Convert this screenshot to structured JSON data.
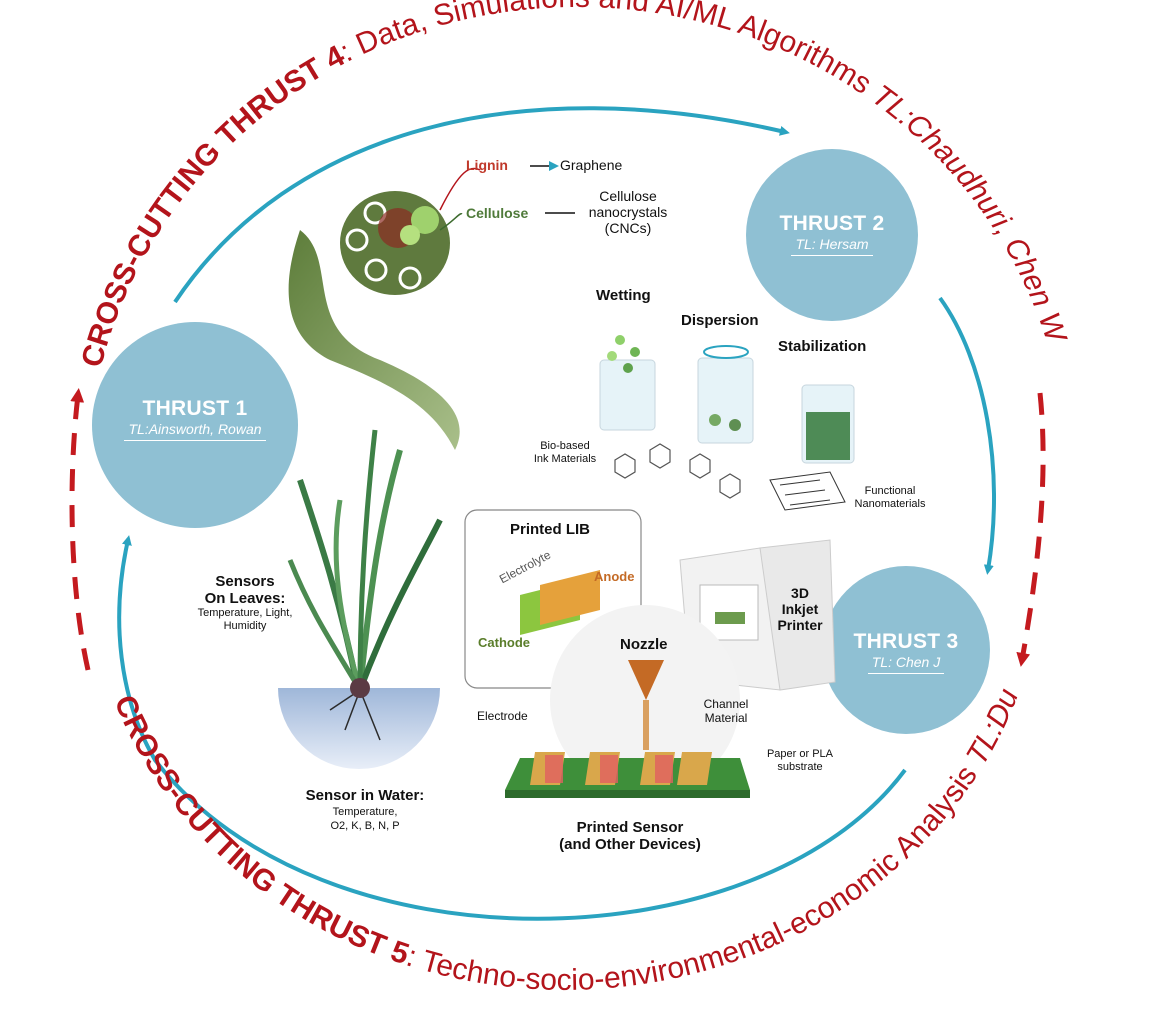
{
  "cross_cutting": {
    "thrust4": {
      "label": "CROSS-CUTTING THRUST 4",
      "desc": ": Data, Simulations and AI/ML Algorithms",
      "tl": " TL:Chaudhuri, Chen W"
    },
    "thrust5": {
      "label": "CROSS-CUTTING THRUST 5",
      "desc": ": Techno-socio-environmental-economic Analysis",
      "tl": " TL:Dunn"
    }
  },
  "thrusts": [
    {
      "title": "THRUST 1",
      "tl": "TL:Ainsworth, Rowan"
    },
    {
      "title": "THRUST 2",
      "tl": "TL: Hersam"
    },
    {
      "title": "THRUST 3",
      "tl": "TL: Chen J"
    }
  ],
  "plant": {
    "lignin": "Lignin",
    "graphene": "Graphene",
    "cellulose": "Cellulose",
    "cnc_line1": "Cellulose",
    "cnc_line2": "nanocrystals",
    "cnc_line3": "(CNCs)"
  },
  "ink": {
    "wetting": "Wetting",
    "dispersion": "Dispersion",
    "stabilization": "Stabilization",
    "biobased_line1": "Bio-based",
    "biobased_line2": "Ink Materials",
    "functional_line1": "Functional",
    "functional_line2": "Nanomaterials"
  },
  "lib": {
    "title": "Printed LIB",
    "electrolyte": "Electrolyte",
    "anode": "Anode",
    "cathode": "Cathode"
  },
  "printer": {
    "line1": "3D",
    "line2": "Inkjet",
    "line3": "Printer",
    "nozzle": "Nozzle"
  },
  "sensor": {
    "electrode": "Electrode",
    "channel_line1": "Channel",
    "channel_line2": "Material",
    "substrate_line1": "Paper or PLA",
    "substrate_line2": "substrate",
    "title_line1": "Printed Sensor",
    "title_line2": "(and Other Devices)"
  },
  "leaves": {
    "title_line1": "Sensors",
    "title_line2": "On Leaves:",
    "detail_line1": "Temperature, Light,",
    "detail_line2": "Humidity"
  },
  "water": {
    "title": "Sensor in Water:",
    "detail_line1": "Temperature,",
    "detail_line2": "O2, K, B, N, P"
  },
  "colors": {
    "circle": "#8fc0d3",
    "arc": "#2aa3c0",
    "cross": "#b3141b",
    "dashed": "#c41a1f",
    "leaf": "#4f8a4a"
  }
}
